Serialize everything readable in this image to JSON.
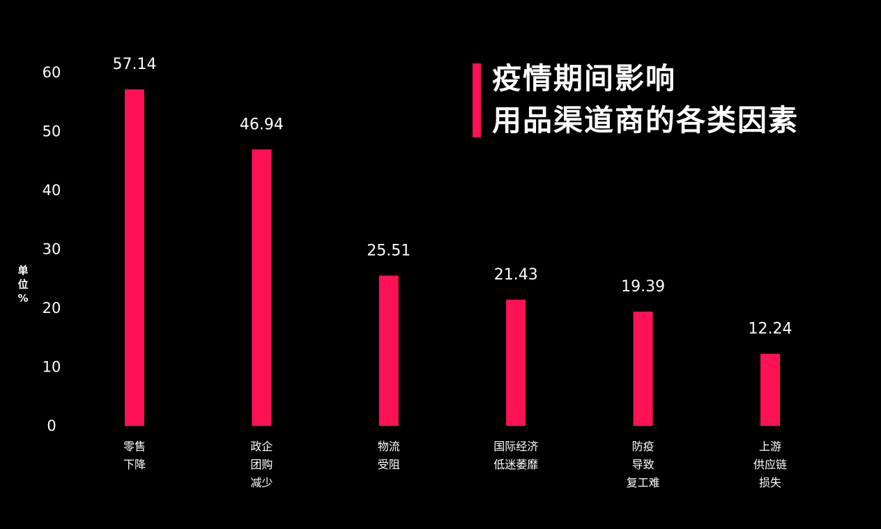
{
  "chart_data": {
    "type": "bar",
    "title_lines": [
      "疫情期间影响",
      "用品渠道商的各类因素"
    ],
    "unit_label": [
      "单",
      "位",
      "%"
    ],
    "ylim": [
      0,
      60
    ],
    "yticks": [
      "0",
      "10",
      "20",
      "30",
      "40",
      "50",
      "60"
    ],
    "categories": [
      [
        "零售",
        "下降"
      ],
      [
        "政企",
        "团购",
        "减少"
      ],
      [
        "物流",
        "受阻"
      ],
      [
        "国际经济",
        "低迷萎靡"
      ],
      [
        "防疫",
        "导致",
        "复工难"
      ],
      [
        "上游",
        "供应链",
        "损失"
      ]
    ],
    "values": [
      57.14,
      46.94,
      25.51,
      21.43,
      19.39,
      12.24
    ],
    "value_labels": [
      "57.14",
      "46.94",
      "25.51",
      "21.43",
      "19.39",
      "12.24"
    ],
    "grid": false,
    "legend": "none",
    "colors": {
      "bar": "#ff1155",
      "background": "#000000",
      "text": "#ffffff"
    }
  }
}
